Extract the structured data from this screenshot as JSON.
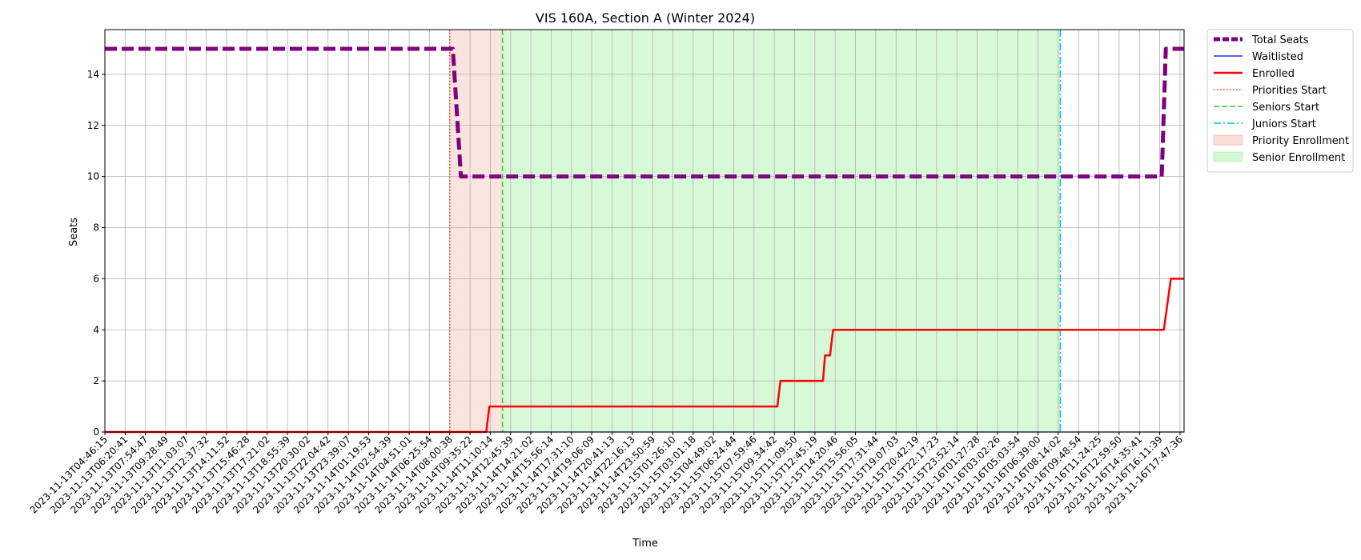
{
  "chart_data": {
    "type": "line",
    "title": "VIS 160A, Section A (Winter 2024)",
    "xlabel": "Time",
    "ylabel": "Seats",
    "ylim": [
      0,
      15.75
    ],
    "y_ticks": [
      0,
      2,
      4,
      6,
      8,
      10,
      12,
      14
    ],
    "grid": true,
    "legend_position": "outside-top-right",
    "x_ticks": [
      "2023-11-13T04:46:15",
      "2023-11-13T06:20:41",
      "2023-11-13T07:54:47",
      "2023-11-13T09:28:49",
      "2023-11-13T11:03:07",
      "2023-11-13T12:37:32",
      "2023-11-13T14:11:52",
      "2023-11-13T15:46:28",
      "2023-11-13T17:21:02",
      "2023-11-13T18:55:39",
      "2023-11-13T20:30:02",
      "2023-11-13T22:04:42",
      "2023-11-13T23:39:07",
      "2023-11-14T01:19:53",
      "2023-11-14T02:54:39",
      "2023-11-14T04:51:01",
      "2023-11-14T06:25:54",
      "2023-11-14T08:00:38",
      "2023-11-14T09:35:22",
      "2023-11-14T11:10:14",
      "2023-11-14T12:45:39",
      "2023-11-14T14:21:02",
      "2023-11-14T15:56:14",
      "2023-11-14T17:31:10",
      "2023-11-14T19:06:09",
      "2023-11-14T20:41:13",
      "2023-11-14T22:16:13",
      "2023-11-14T23:50:59",
      "2023-11-15T01:26:10",
      "2023-11-15T03:01:18",
      "2023-11-15T04:49:02",
      "2023-11-15T06:24:44",
      "2023-11-15T07:59:46",
      "2023-11-15T09:34:42",
      "2023-11-15T11:09:50",
      "2023-11-15T12:45:19",
      "2023-11-15T14:20:46",
      "2023-11-15T15:56:05",
      "2023-11-15T17:31:44",
      "2023-11-15T19:07:03",
      "2023-11-15T20:42:19",
      "2023-11-15T22:17:23",
      "2023-11-15T23:52:14",
      "2023-11-16T01:27:28",
      "2023-11-16T03:02:26",
      "2023-11-16T05:03:54",
      "2023-11-16T06:39:00",
      "2023-11-16T08:14:02",
      "2023-11-16T09:48:54",
      "2023-11-16T11:24:25",
      "2023-11-16T12:59:50",
      "2023-11-16T14:35:41",
      "2023-11-16T16:11:39",
      "2023-11-16T17:47:36"
    ],
    "x_range_index": [
      0,
      53.2
    ],
    "series": [
      {
        "name": "Total Seats",
        "color": "#800080",
        "style": "dashed-thick",
        "points": [
          [
            0,
            15
          ],
          [
            17.15,
            15
          ],
          [
            17.55,
            10
          ],
          [
            52.1,
            10
          ],
          [
            52.3,
            15
          ],
          [
            53.2,
            15
          ]
        ]
      },
      {
        "name": "Waitlisted",
        "color": "#0000ff",
        "style": "solid-thin",
        "points": [
          [
            0,
            0
          ],
          [
            53.2,
            0
          ]
        ]
      },
      {
        "name": "Enrolled",
        "color": "#ff0000",
        "style": "solid",
        "points": [
          [
            0,
            0
          ],
          [
            18.8,
            0
          ],
          [
            18.95,
            1
          ],
          [
            33.15,
            1
          ],
          [
            33.3,
            2
          ],
          [
            35.4,
            2
          ],
          [
            35.5,
            3
          ],
          [
            35.75,
            3
          ],
          [
            35.9,
            4
          ],
          [
            52.2,
            4
          ],
          [
            52.55,
            6
          ],
          [
            53.2,
            6
          ]
        ]
      }
    ],
    "markers": [
      {
        "name": "Priorities Start",
        "x": 17.0,
        "color": "#ff4500",
        "style": "dotted"
      },
      {
        "name": "Seniors Start",
        "x": 19.6,
        "color": "#32cd32",
        "style": "dashed"
      },
      {
        "name": "Juniors Start",
        "x": 47.1,
        "color": "#00c8c8",
        "style": "dashdot"
      }
    ],
    "spans": [
      {
        "name": "Priority Enrollment",
        "start": 17.0,
        "end": 19.6,
        "color": "#e9967a",
        "opacity": 0.25
      },
      {
        "name": "Senior Enrollment",
        "start": 19.6,
        "end": 47.1,
        "color": "#90ee90",
        "opacity": 0.35
      }
    ],
    "legend": [
      {
        "label": "Total Seats",
        "kind": "line",
        "color": "#800080",
        "style": "dashed-thick"
      },
      {
        "label": "Waitlisted",
        "kind": "line",
        "color": "#0000ff",
        "style": "solid-thin"
      },
      {
        "label": "Enrolled",
        "kind": "line",
        "color": "#ff0000",
        "style": "solid"
      },
      {
        "label": "Priorities Start",
        "kind": "line",
        "color": "#ff4500",
        "style": "dotted"
      },
      {
        "label": "Seniors Start",
        "kind": "line",
        "color": "#32cd32",
        "style": "dashed"
      },
      {
        "label": "Juniors Start",
        "kind": "line",
        "color": "#00c8c8",
        "style": "dashdot"
      },
      {
        "label": "Priority Enrollment",
        "kind": "patch",
        "color": "#e9967a",
        "opacity": 0.3
      },
      {
        "label": "Senior Enrollment",
        "kind": "patch",
        "color": "#90ee90",
        "opacity": 0.4
      }
    ]
  }
}
